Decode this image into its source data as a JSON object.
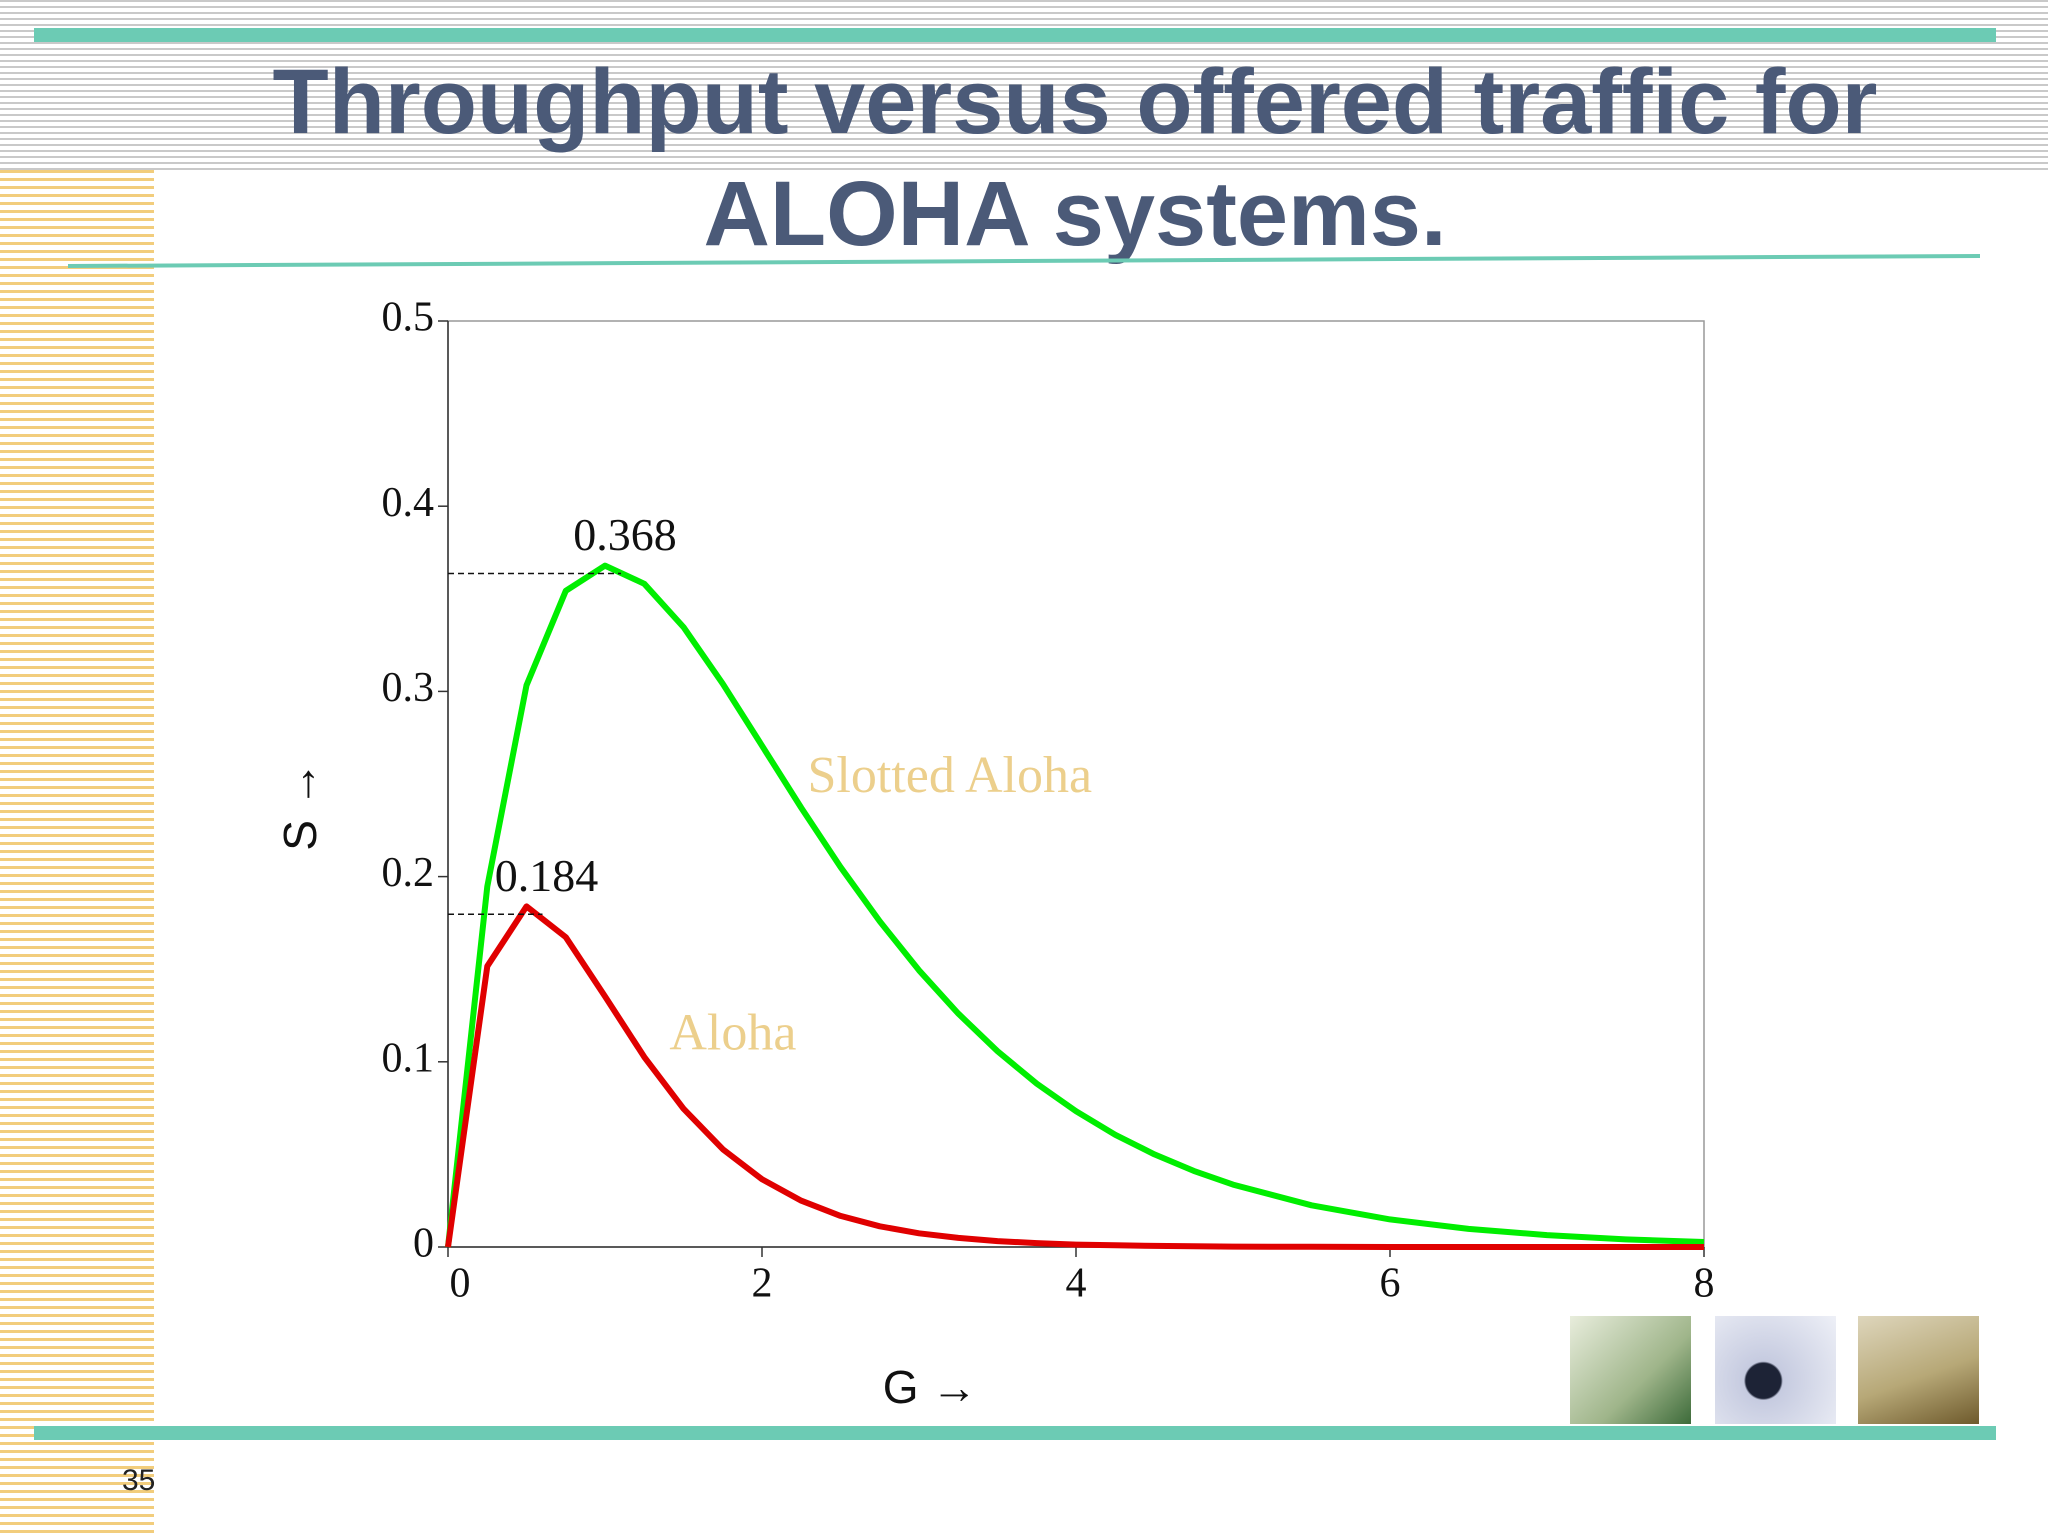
{
  "slide_number": "35",
  "chart_data": {
    "type": "line",
    "title": "Throughput versus offered traffic for ALOHA systems.",
    "x_label": "G →",
    "y_label": "S →",
    "x": [
      0,
      0.25,
      0.5,
      0.75,
      1,
      1.25,
      1.5,
      1.75,
      2,
      2.25,
      2.5,
      2.75,
      3,
      3.25,
      3.5,
      3.75,
      4,
      4.25,
      4.5,
      4.75,
      5,
      5.5,
      6,
      6.5,
      7,
      7.5,
      8
    ],
    "series": [
      {
        "name": "Slotted Aloha",
        "color": "#00ee00",
        "values": [
          0,
          0.1947,
          0.3033,
          0.3543,
          0.3679,
          0.3581,
          0.3347,
          0.3041,
          0.2707,
          0.2371,
          0.2052,
          0.1758,
          0.1494,
          0.126,
          0.1057,
          0.0882,
          0.0733,
          0.0606,
          0.05,
          0.0411,
          0.0337,
          0.0225,
          0.0149,
          0.0098,
          0.0064,
          0.0041,
          0.0027
        ]
      },
      {
        "name": "Aloha",
        "color": "#e00000",
        "values": [
          0,
          0.1516,
          0.1839,
          0.1673,
          0.1353,
          0.1026,
          0.0747,
          0.0528,
          0.0366,
          0.025,
          0.0168,
          0.0112,
          0.0074,
          0.0049,
          0.0032,
          0.0021,
          0.0013,
          0.0009,
          0.0006,
          0.0004,
          0.0002,
          0.0001,
          0,
          0,
          0,
          0,
          0
        ]
      }
    ],
    "peaks": [
      {
        "x": 1,
        "y": 0.368
      },
      {
        "x": 0.5,
        "y": 0.184
      }
    ],
    "xlim": [
      0,
      8
    ],
    "xticks": [
      0,
      2,
      4,
      6,
      8
    ],
    "ylim": [
      0,
      0.5
    ],
    "yticks": [
      0,
      0.1,
      0.2,
      0.3,
      0.4,
      0.5
    ]
  }
}
